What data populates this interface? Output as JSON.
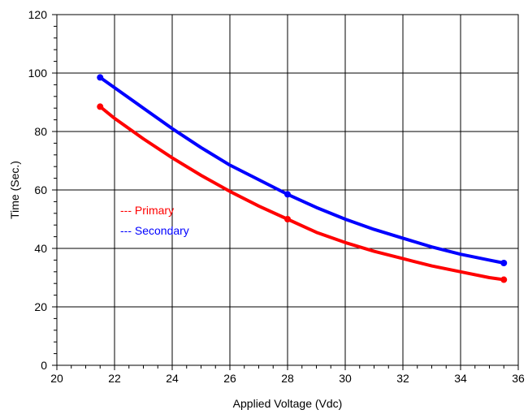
{
  "chart_data": {
    "type": "line",
    "title": "",
    "xlabel": "Applied Voltage (Vdc)",
    "ylabel": "Time (Sec.)",
    "xlim": [
      20,
      36
    ],
    "ylim": [
      0,
      120
    ],
    "x_ticks": [
      20,
      22,
      24,
      26,
      28,
      30,
      32,
      34,
      36
    ],
    "y_ticks": [
      0,
      20,
      40,
      60,
      80,
      100,
      120
    ],
    "x_minor_step": 0.5,
    "y_minor_step": 4,
    "grid": true,
    "legend_position": "left-middle",
    "series": [
      {
        "name": "--- Primary",
        "color": "#ff0000",
        "curve": [
          [
            21.5,
            88.5
          ],
          [
            22,
            84.5
          ],
          [
            23,
            77.5
          ],
          [
            24,
            71
          ],
          [
            25,
            65
          ],
          [
            26,
            59.5
          ],
          [
            27,
            54.5
          ],
          [
            28,
            50
          ],
          [
            29,
            45.5
          ],
          [
            30,
            42
          ],
          [
            31,
            39
          ],
          [
            32,
            36.5
          ],
          [
            33,
            34
          ],
          [
            34,
            32
          ],
          [
            35,
            30
          ],
          [
            35.5,
            29.3
          ]
        ],
        "markers": [
          [
            21.5,
            88.5
          ],
          [
            28,
            50
          ],
          [
            35.5,
            29.3
          ]
        ]
      },
      {
        "name": "--- Secondary",
        "color": "#0000ff",
        "curve": [
          [
            21.5,
            98.5
          ],
          [
            22,
            95
          ],
          [
            23,
            88
          ],
          [
            24,
            81
          ],
          [
            25,
            74.5
          ],
          [
            26,
            68.5
          ],
          [
            27,
            63.5
          ],
          [
            28,
            58.5
          ],
          [
            29,
            54
          ],
          [
            30,
            50
          ],
          [
            31,
            46.5
          ],
          [
            32,
            43.5
          ],
          [
            33,
            40.5
          ],
          [
            34,
            38
          ],
          [
            35,
            36
          ],
          [
            35.5,
            35
          ]
        ],
        "markers": [
          [
            21.5,
            98.5
          ],
          [
            28,
            58.5
          ],
          [
            35.5,
            35
          ]
        ]
      }
    ]
  }
}
